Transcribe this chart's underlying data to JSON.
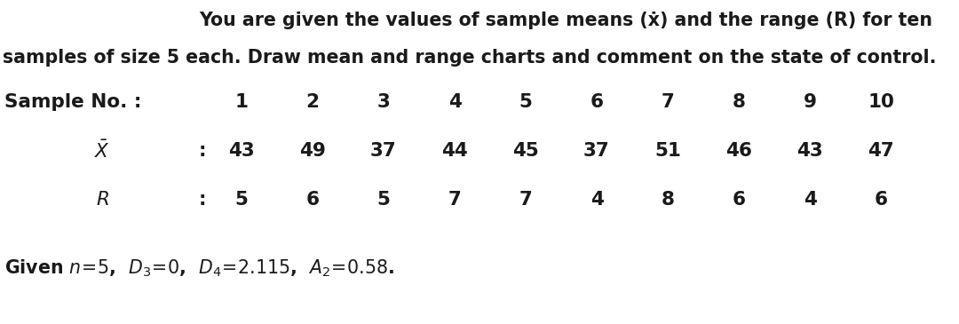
{
  "title_line1": "You are given the values of sample means (ẋ) and the range (R) for ten",
  "title_line2": "samples of size 5 each. Draw mean and range charts and comment on the state of control.",
  "sample_nos": [
    "1",
    "2",
    "3",
    "4",
    "5",
    "6",
    "7",
    "8",
    "9",
    "10"
  ],
  "x_bar_values": [
    "43",
    "49",
    "37",
    "44",
    "45",
    "37",
    "51",
    "46",
    "43",
    "47"
  ],
  "r_values": [
    "5",
    "6",
    "5",
    "7",
    "7",
    "4",
    "8",
    "6",
    "4",
    "6"
  ],
  "bg_color": "#ffffff",
  "text_color": "#1a1a1a",
  "font_size_title": 14.8,
  "font_size_table": 15.5,
  "font_size_footnote": 14.8
}
